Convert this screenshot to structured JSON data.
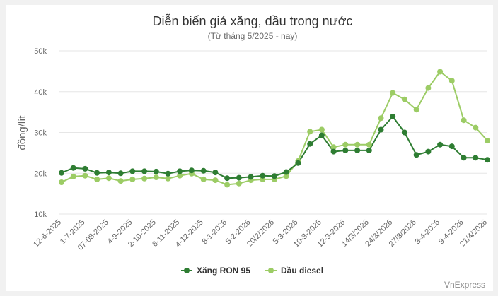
{
  "chart_data": {
    "type": "line",
    "title": "Diễn biến giá xăng, dầu trong nước",
    "subtitle": "(Từ tháng 5/2025 - nay)",
    "xlabel": "",
    "ylabel": "đồng/lít",
    "ylim": [
      10000,
      50000
    ],
    "y_ticks": [
      "10k",
      "20k",
      "30k",
      "40k",
      "50k"
    ],
    "grid": true,
    "legend_position": "bottom",
    "credit": "VnExpress",
    "categories": [
      "12-6-2025",
      "",
      "1-7-2025",
      "",
      "07-08-2025",
      "",
      "4-9-2025",
      "",
      "2-10-2025",
      "",
      "6-11-2025",
      "",
      "4-12-2025",
      "",
      "8-1-2026",
      "",
      "5-2-2026",
      "",
      "20/2/2026",
      "",
      "5-3-2026",
      "",
      "10-3-2026",
      "",
      "12-3-2026",
      "",
      "14/3/2026",
      "",
      "24/3/2026",
      "",
      "27/3/2026",
      "",
      "3-4-2026",
      "",
      "9-4-2026",
      "",
      "21/4/2026"
    ],
    "series": [
      {
        "name": "Xăng RON 95",
        "color": "#2e7d32",
        "values": [
          20100,
          21300,
          21100,
          20100,
          20200,
          20000,
          20500,
          20500,
          20400,
          19900,
          20500,
          20700,
          20600,
          20200,
          18800,
          18900,
          19100,
          19400,
          19300,
          20300,
          22500,
          27200,
          29300,
          25300,
          25600,
          25600,
          25600,
          30700,
          33900,
          30000,
          24500,
          25300,
          27000,
          26600,
          23800,
          23800,
          23300
        ]
      },
      {
        "name": "Dầu diesel",
        "color": "#9ccc65",
        "values": [
          17800,
          19200,
          19400,
          18500,
          18800,
          18100,
          18500,
          18700,
          19000,
          18700,
          19400,
          19900,
          18500,
          18300,
          17200,
          17500,
          18300,
          18500,
          18500,
          19300,
          23000,
          30200,
          30700,
          26400,
          27000,
          27000,
          27000,
          33500,
          39700,
          38100,
          35600,
          40900,
          44900,
          42700,
          33000,
          31200,
          28000
        ]
      }
    ]
  }
}
